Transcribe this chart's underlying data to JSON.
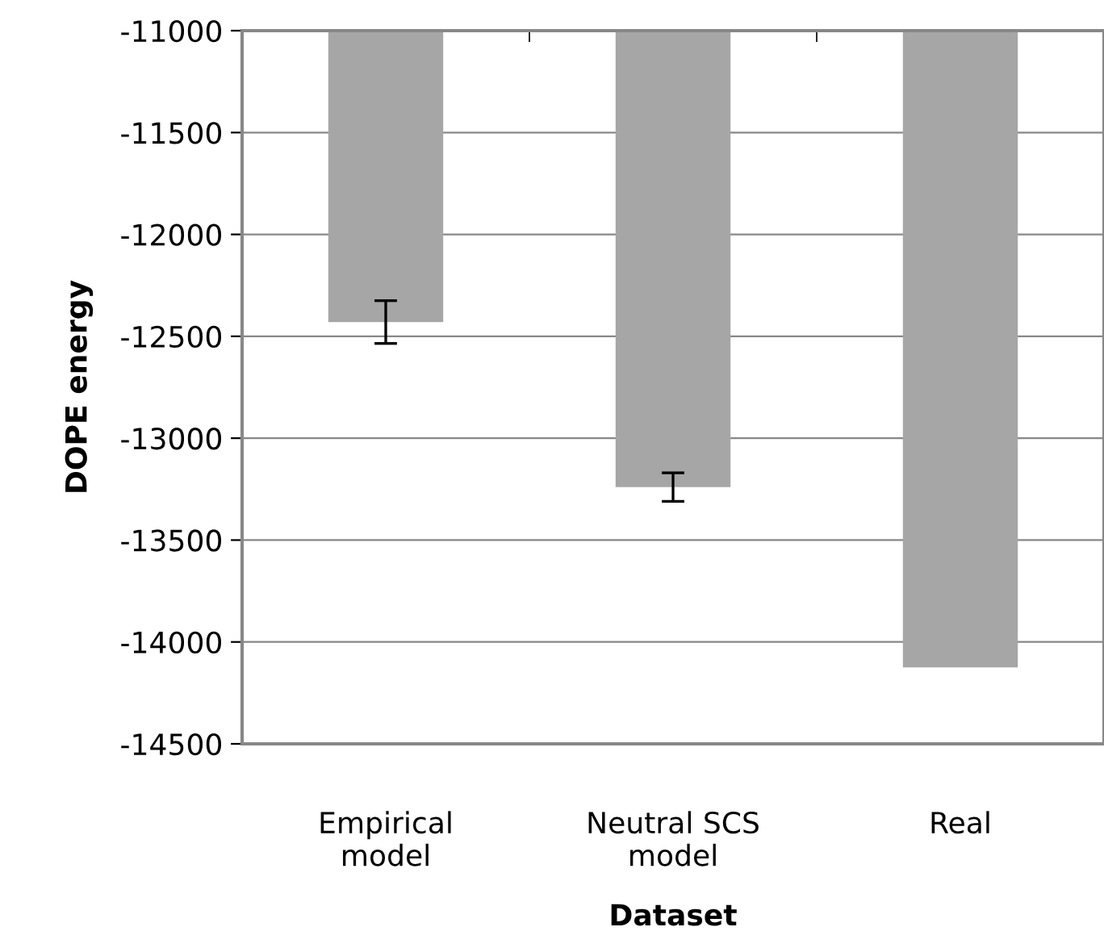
{
  "chart_data": {
    "type": "bar",
    "xlabel": "Dataset",
    "ylabel": "DOPE energy",
    "categories": [
      "Empirical\nmodel",
      "Neutral SCS\nmodel",
      "Real"
    ],
    "values": [
      -12430,
      -13240,
      -14125
    ],
    "errors": [
      105,
      70,
      null
    ],
    "color": "#a6a6a6",
    "ylim": [
      -14500,
      -11000
    ],
    "yticks": [
      -11000,
      -11500,
      -12000,
      -12500,
      -13000,
      -13500,
      -14000,
      -14500
    ],
    "grid": "y",
    "legend": false
  }
}
